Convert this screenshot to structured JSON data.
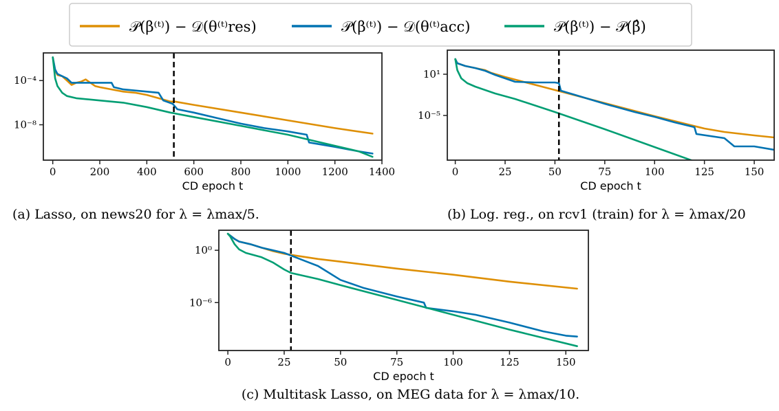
{
  "legend": {
    "items": [
      {
        "label": "𝒫(β⁽ᵗ⁾) − 𝒟(θ⁽ᵗ⁾res)",
        "color": "#DE8F05"
      },
      {
        "label": "𝒫(β⁽ᵗ⁾) − 𝒟(θ⁽ᵗ⁾acc)",
        "color": "#0173B2"
      },
      {
        "label": "𝒫(β⁽ᵗ⁾) − 𝒫(β̂)",
        "color": "#029E73"
      }
    ]
  },
  "chart_data": [
    {
      "type": "line",
      "caption": "(a) Lasso, on news20 for λ = λmax/5.",
      "xlabel": "CD epoch t",
      "ylabel": "",
      "log_y": true,
      "xlim": [
        -40,
        1400
      ],
      "ylim_log10": [
        -11.2,
        -1.5
      ],
      "xticks": [
        0,
        200,
        400,
        600,
        800,
        1000,
        1200,
        1400
      ],
      "yticks_log10": [
        -4,
        -8
      ],
      "ytick_labels": [
        "10⁻⁴",
        "10⁻⁸"
      ],
      "vline_x": 515,
      "series": [
        {
          "name": "𝒫(β⁽ᵗ⁾) − 𝒟(θ⁽ᵗ⁾res)",
          "color": "#DE8F05",
          "x": [
            0,
            10,
            20,
            40,
            60,
            80,
            100,
            120,
            140,
            160,
            180,
            200,
            250,
            300,
            350,
            400,
            450,
            500,
            520,
            600,
            800,
            1000,
            1200,
            1360
          ],
          "log10_y": [
            -1.9,
            -3.1,
            -3.5,
            -3.6,
            -4.0,
            -4.4,
            -4.2,
            -4.1,
            -3.9,
            -4.2,
            -4.5,
            -4.6,
            -4.8,
            -5.0,
            -5.1,
            -5.3,
            -5.6,
            -5.9,
            -5.9,
            -6.2,
            -6.9,
            -7.6,
            -8.3,
            -8.8
          ]
        },
        {
          "name": "𝒫(β⁽ᵗ⁾) − 𝒟(θ⁽ᵗ⁾acc)",
          "color": "#0173B2",
          "x": [
            0,
            10,
            20,
            40,
            60,
            80,
            100,
            150,
            250,
            260,
            300,
            350,
            400,
            450,
            470,
            510,
            530,
            600,
            700,
            800,
            900,
            1000,
            1080,
            1090,
            1200,
            1300,
            1360
          ],
          "log10_y": [
            -1.9,
            -3.0,
            -3.4,
            -3.6,
            -3.8,
            -4.2,
            -4.2,
            -4.2,
            -4.2,
            -4.6,
            -4.8,
            -4.9,
            -5.0,
            -5.1,
            -5.8,
            -6.1,
            -6.6,
            -6.9,
            -7.4,
            -7.9,
            -8.3,
            -8.6,
            -8.9,
            -9.6,
            -10.0,
            -10.4,
            -10.6
          ]
        },
        {
          "name": "𝒫(β⁽ᵗ⁾) − 𝒫(β̂)",
          "color": "#029E73",
          "x": [
            0,
            10,
            20,
            40,
            60,
            100,
            200,
            300,
            400,
            500,
            600,
            700,
            800,
            900,
            1000,
            1100,
            1200,
            1300,
            1360
          ],
          "log10_y": [
            -1.9,
            -3.8,
            -4.5,
            -5.1,
            -5.4,
            -5.6,
            -5.8,
            -6.0,
            -6.4,
            -6.9,
            -7.3,
            -7.7,
            -8.1,
            -8.5,
            -8.9,
            -9.4,
            -9.9,
            -10.4,
            -10.9
          ]
        }
      ]
    },
    {
      "type": "line",
      "caption": "(b) Log. reg., on rcv1 (train) for λ = λmax/20",
      "xlabel": "CD epoch t",
      "ylabel": "",
      "log_y": true,
      "xlim": [
        -4,
        160
      ],
      "ylim_log10": [
        -11.5,
        4.5
      ],
      "xticks": [
        0,
        25,
        50,
        75,
        100,
        125,
        150
      ],
      "yticks_log10": [
        1,
        -5
      ],
      "ytick_labels": [
        "10¹",
        "10⁻⁵"
      ],
      "vline_x": 52,
      "series": [
        {
          "name": "𝒫(β⁽ᵗ⁾) − 𝒟(θ⁽ᵗ⁾res)",
          "color": "#DE8F05",
          "x": [
            0,
            1,
            5,
            10,
            15,
            18,
            25,
            50,
            75,
            100,
            125,
            135,
            150,
            160
          ],
          "log10_y": [
            3.2,
            2.6,
            2.2,
            1.9,
            1.6,
            1.2,
            0.6,
            -1.3,
            -3.2,
            -5.1,
            -6.9,
            -7.4,
            -7.9,
            -8.2
          ]
        },
        {
          "name": "𝒫(β⁽ᵗ⁾) − 𝒟(θ⁽ᵗ⁾acc)",
          "color": "#0173B2",
          "x": [
            0,
            1,
            5,
            10,
            15,
            20,
            25,
            30,
            40,
            50,
            52,
            53,
            60,
            75,
            90,
            100,
            110,
            120,
            121,
            135,
            140,
            150,
            160
          ],
          "log10_y": [
            3.2,
            2.6,
            2.2,
            1.9,
            1.5,
            0.9,
            0.4,
            -0.1,
            -0.2,
            -0.2,
            -0.3,
            -1.4,
            -2.0,
            -3.3,
            -4.5,
            -5.2,
            -6.0,
            -6.7,
            -7.7,
            -8.3,
            -9.5,
            -9.5,
            -10.0
          ]
        },
        {
          "name": "𝒫(β⁽ᵗ⁾) − 𝒫(β̂)",
          "color": "#029E73",
          "x": [
            0,
            1,
            3,
            6,
            10,
            20,
            30,
            50,
            75,
            100,
            125,
            150,
            160
          ],
          "log10_y": [
            3.2,
            1.6,
            0.4,
            -0.3,
            -0.8,
            -1.8,
            -2.6,
            -4.5,
            -7.0,
            -9.6,
            -12.2,
            -14.8,
            -15.9
          ]
        }
      ]
    },
    {
      "type": "line",
      "caption": "(c) Multitask Lasso, on MEG data for λ = λmax/10.",
      "xlabel": "CD epoch t",
      "ylabel": "",
      "log_y": true,
      "xlim": [
        -4,
        160
      ],
      "ylim_log10": [
        -11.5,
        2.3
      ],
      "xticks": [
        0,
        25,
        50,
        75,
        100,
        125,
        150
      ],
      "yticks_log10": [
        0,
        -6
      ],
      "ytick_labels": [
        "10⁰",
        "10⁻⁶"
      ],
      "vline_x": 28,
      "series": [
        {
          "name": "𝒫(β⁽ᵗ⁾) − 𝒟(θ⁽ᵗ⁾res)",
          "color": "#DE8F05",
          "x": [
            0,
            1,
            3,
            5,
            10,
            15,
            20,
            25,
            30,
            40,
            50,
            75,
            100,
            125,
            155
          ],
          "log10_y": [
            1.9,
            1.7,
            1.3,
            1.0,
            0.7,
            0.3,
            -0.1,
            -0.4,
            -0.6,
            -1.0,
            -1.3,
            -2.1,
            -2.8,
            -3.6,
            -4.4
          ]
        },
        {
          "name": "𝒫(β⁽ᵗ⁾) − 𝒟(θ⁽ᵗ⁾acc)",
          "color": "#0173B2",
          "x": [
            0,
            1,
            3,
            5,
            10,
            15,
            20,
            25,
            30,
            35,
            40,
            45,
            50,
            60,
            75,
            87,
            88,
            100,
            110,
            125,
            140,
            150,
            155
          ],
          "log10_y": [
            1.9,
            1.7,
            1.3,
            1.0,
            0.7,
            0.3,
            0.0,
            -0.3,
            -0.8,
            -1.3,
            -1.8,
            -2.6,
            -3.4,
            -4.3,
            -5.3,
            -6.0,
            -6.6,
            -7.0,
            -7.4,
            -8.3,
            -9.3,
            -9.8,
            -9.9
          ]
        },
        {
          "name": "𝒫(β⁽ᵗ⁾) − 𝒫(β̂)",
          "color": "#029E73",
          "x": [
            0,
            1,
            3,
            5,
            8,
            15,
            20,
            25,
            28,
            40,
            50,
            75,
            100,
            125,
            155
          ],
          "log10_y": [
            1.9,
            1.6,
            0.7,
            0.1,
            -0.3,
            -0.8,
            -1.4,
            -2.2,
            -2.6,
            -3.3,
            -4.0,
            -5.7,
            -7.4,
            -9.1,
            -11.0
          ]
        }
      ]
    }
  ]
}
